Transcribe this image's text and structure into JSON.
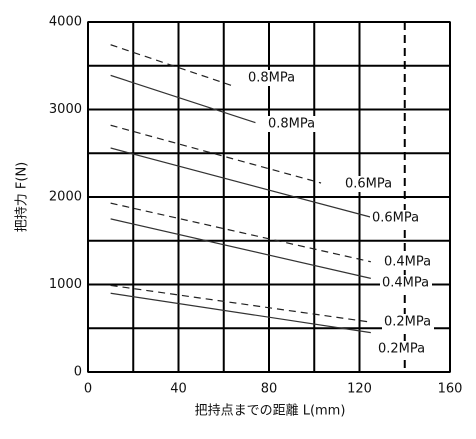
{
  "chart_data": {
    "type": "line",
    "xlabel": "把持点までの距離 L(mm)",
    "ylabel": "把持力 F(N)",
    "xlim": [
      0,
      160
    ],
    "xticks": [
      0,
      40,
      80,
      120,
      160
    ],
    "ylim": [
      0,
      4000
    ],
    "yticks": [
      0,
      1000,
      2000,
      3000,
      4000
    ],
    "grid": true,
    "series": [
      {
        "name": "0.8MPa",
        "color": "#222222",
        "dashed": true,
        "x": [
          10,
          64
        ],
        "values": [
          3740,
          3270
        ]
      },
      {
        "name": "0.8MPa",
        "color": "#333333",
        "dashed": false,
        "x": [
          10,
          74
        ],
        "values": [
          3390,
          2850
        ]
      },
      {
        "name": "0.6MPa",
        "color": "#222222",
        "dashed": true,
        "x": [
          10,
          103
        ],
        "values": [
          2820,
          2160
        ]
      },
      {
        "name": "0.6MPa",
        "color": "#333333",
        "dashed": false,
        "x": [
          10,
          125
        ],
        "values": [
          2560,
          1770
        ]
      },
      {
        "name": "0.4MPa",
        "color": "#222222",
        "dashed": true,
        "x": [
          10,
          125
        ],
        "values": [
          1930,
          1260
        ]
      },
      {
        "name": "0.4MPa",
        "color": "#333333",
        "dashed": false,
        "x": [
          10,
          125
        ],
        "values": [
          1750,
          1070
        ]
      },
      {
        "name": "0.2MPa",
        "color": "#222222",
        "dashed": true,
        "x": [
          10,
          125
        ],
        "values": [
          990,
          570
        ]
      },
      {
        "name": "0.2MPa",
        "color": "#333333",
        "dashed": false,
        "x": [
          10,
          125
        ],
        "values": [
          900,
          450
        ]
      }
    ]
  }
}
